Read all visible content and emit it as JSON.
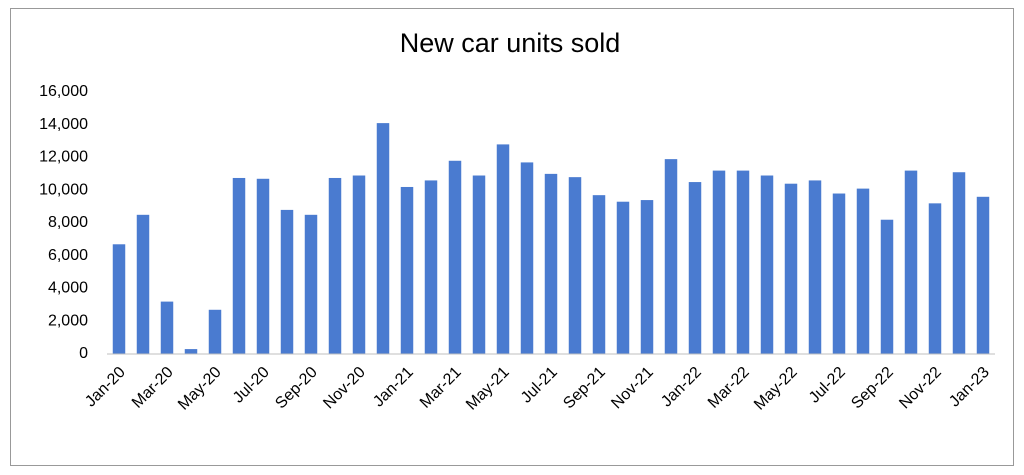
{
  "chart_data": {
    "type": "bar",
    "title": "New car units sold",
    "categories": [
      "Jan-20",
      null,
      "Mar-20",
      null,
      "May-20",
      null,
      "Jul-20",
      null,
      "Sep-20",
      null,
      "Nov-20",
      null,
      "Jan-21",
      null,
      "Mar-21",
      null,
      "May-21",
      null,
      "Jul-21",
      null,
      "Sep-21",
      null,
      "Nov-21",
      null,
      "Jan-22",
      null,
      "Mar-22",
      null,
      "May-22",
      null,
      "Jul-22",
      null,
      "Sep-22",
      null,
      "Nov-22",
      null,
      "Jan-23"
    ],
    "values": [
      6700,
      8500,
      3200,
      300,
      2700,
      10750,
      10700,
      8800,
      8500,
      10750,
      10900,
      14100,
      10200,
      10600,
      11800,
      10900,
      12800,
      11700,
      11000,
      10800,
      9700,
      9300,
      9400,
      11900,
      10500,
      11200,
      11200,
      10900,
      10400,
      10600,
      9800,
      10100,
      8200,
      11200,
      9200,
      11100,
      9600
    ],
    "color": "#4a7bd0",
    "ylim": [
      0,
      16000
    ],
    "yticks": [
      0,
      {
        "value": 2000,
        "label": "2,000"
      },
      {
        "value": 4000,
        "label": "4,000"
      },
      {
        "value": 6000,
        "label": "6,000"
      },
      {
        "value": 8000,
        "label": "8,000"
      },
      {
        "value": 10000,
        "label": "10,000"
      },
      {
        "value": 12000,
        "label": "12,000"
      },
      {
        "value": 14000,
        "label": "14,000"
      },
      {
        "value": 16000,
        "label": "16,000"
      }
    ],
    "grid": false
  }
}
